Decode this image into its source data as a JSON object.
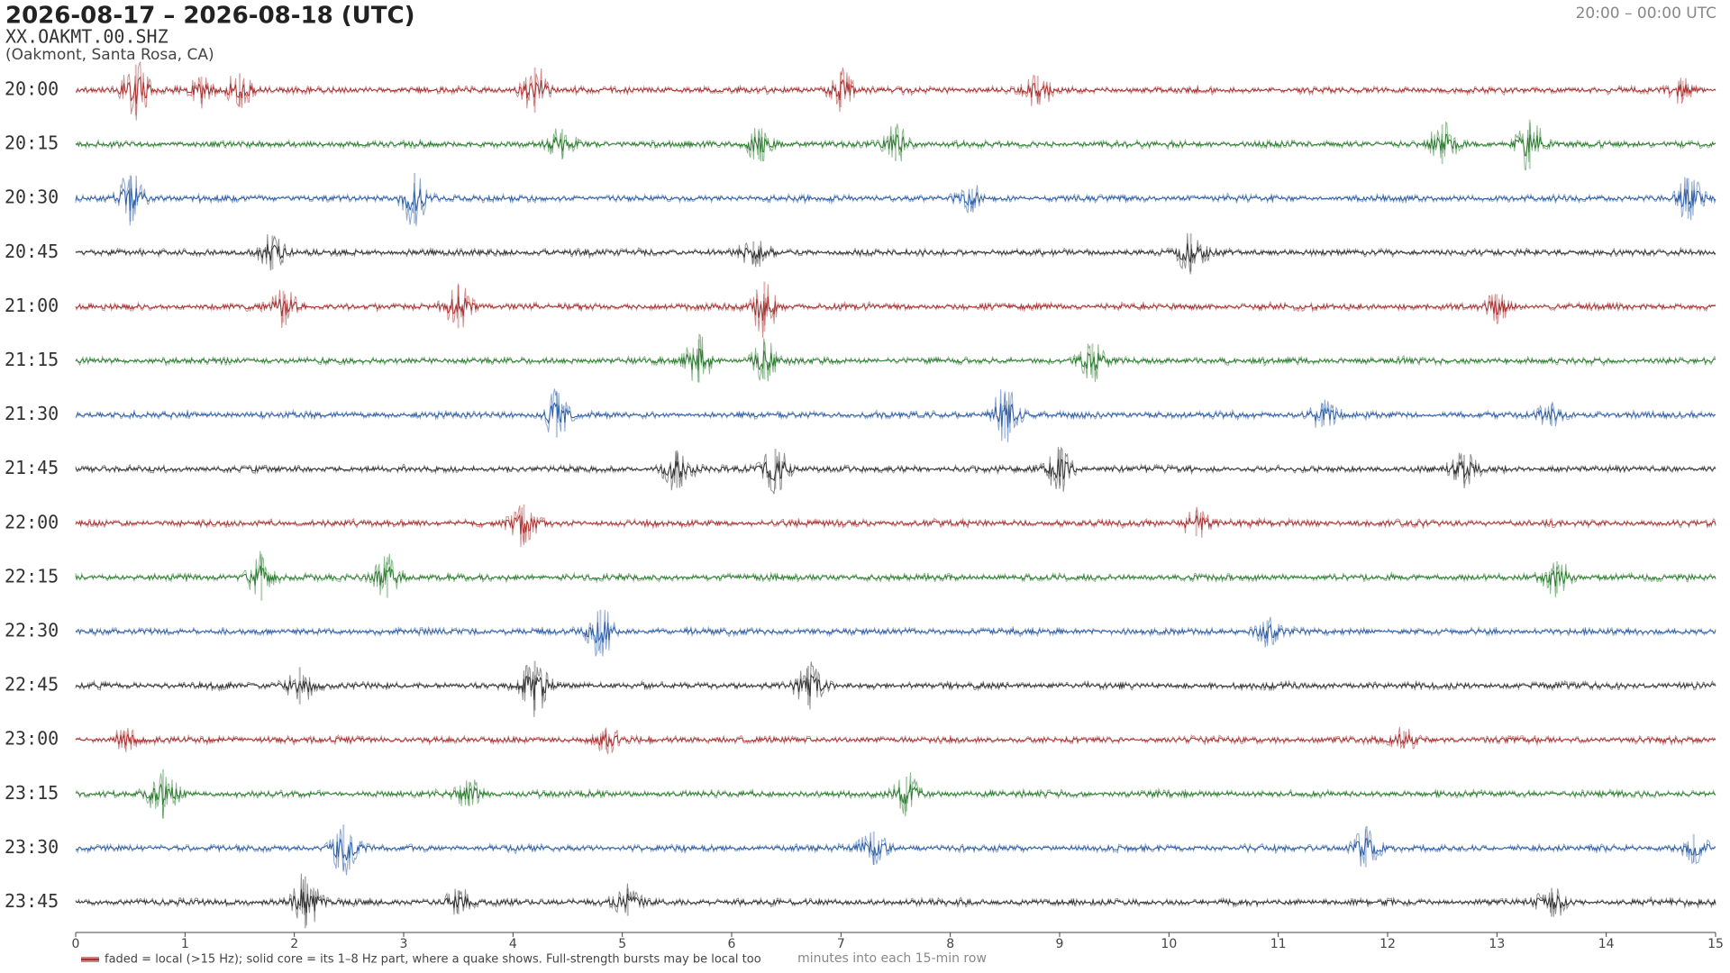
{
  "chart_data": {
    "type": "helicorder",
    "title": "2026-08-17 – 2026-08-18  (UTC)",
    "subtitle": "XX.OAKMT.00.SHZ",
    "location": "(Oakmont, Santa Rosa, CA)",
    "time_range": "20:00 – 00:00 UTC",
    "xlabel": "minutes into each 15-min row",
    "legend": "faded = local (>15 Hz); solid core = its 1–8 Hz part, where a quake shows. Full-strength bursts may be local too",
    "xlim": [
      0,
      15
    ],
    "xticks": [
      0,
      1,
      2,
      3,
      4,
      5,
      6,
      7,
      8,
      9,
      10,
      11,
      12,
      13,
      14,
      15
    ],
    "colors": [
      "#a83232",
      "#2e7d32",
      "#2f5fa6",
      "#333333"
    ],
    "rows": [
      {
        "label": "20:00",
        "events": [
          0.55,
          1.15,
          1.5,
          4.2,
          7.0,
          8.8,
          14.7
        ]
      },
      {
        "label": "20:15",
        "events": [
          4.45,
          6.25,
          7.5,
          12.5,
          13.3
        ]
      },
      {
        "label": "20:30",
        "events": [
          0.5,
          3.1,
          8.2,
          14.75
        ]
      },
      {
        "label": "20:45",
        "events": [
          1.8,
          6.2,
          10.2
        ]
      },
      {
        "label": "21:00",
        "events": [
          1.9,
          3.5,
          6.3,
          13.0
        ]
      },
      {
        "label": "21:15",
        "events": [
          5.7,
          6.3,
          9.3
        ]
      },
      {
        "label": "21:30",
        "events": [
          4.4,
          8.5,
          11.4,
          13.5
        ]
      },
      {
        "label": "21:45",
        "events": [
          5.5,
          6.4,
          9.0,
          12.7
        ]
      },
      {
        "label": "22:00",
        "events": [
          4.1,
          10.25
        ]
      },
      {
        "label": "22:15",
        "events": [
          1.7,
          2.85,
          13.55
        ]
      },
      {
        "label": "22:30",
        "events": [
          4.8,
          10.9
        ]
      },
      {
        "label": "22:45",
        "events": [
          2.05,
          4.2,
          6.7
        ]
      },
      {
        "label": "23:00",
        "events": [
          0.45,
          4.85,
          12.15
        ]
      },
      {
        "label": "23:15",
        "events": [
          0.8,
          3.6,
          7.6
        ]
      },
      {
        "label": "23:30",
        "events": [
          2.45,
          7.3,
          11.8,
          14.8
        ]
      },
      {
        "label": "23:45",
        "events": [
          2.1,
          3.5,
          5.05,
          13.5
        ]
      }
    ]
  }
}
